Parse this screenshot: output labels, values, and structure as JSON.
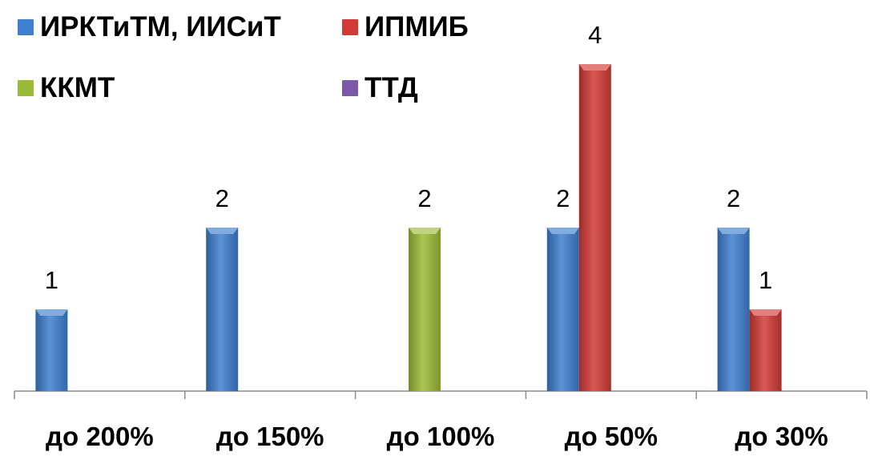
{
  "chart_data": {
    "type": "bar",
    "categories": [
      "до 200%",
      "до 150%",
      "до 100%",
      "до 50%",
      "до 30%"
    ],
    "series": [
      {
        "name": "ИРКТиТМ, ИИСиТ",
        "color": "#3f7fd0",
        "values": [
          1,
          2,
          0,
          2,
          2
        ]
      },
      {
        "name": "ИПМИБ",
        "color": "#d23a36",
        "values": [
          0,
          0,
          0,
          4,
          1
        ]
      },
      {
        "name": "ККМТ",
        "color": "#9bbb38",
        "values": [
          0,
          0,
          2,
          0,
          0
        ]
      },
      {
        "name": "ТТД",
        "color": "#7e58a8",
        "values": [
          0,
          0,
          0,
          0,
          0
        ]
      }
    ],
    "ylim": [
      0,
      4
    ],
    "grid": false,
    "legend_position": "top-left"
  }
}
